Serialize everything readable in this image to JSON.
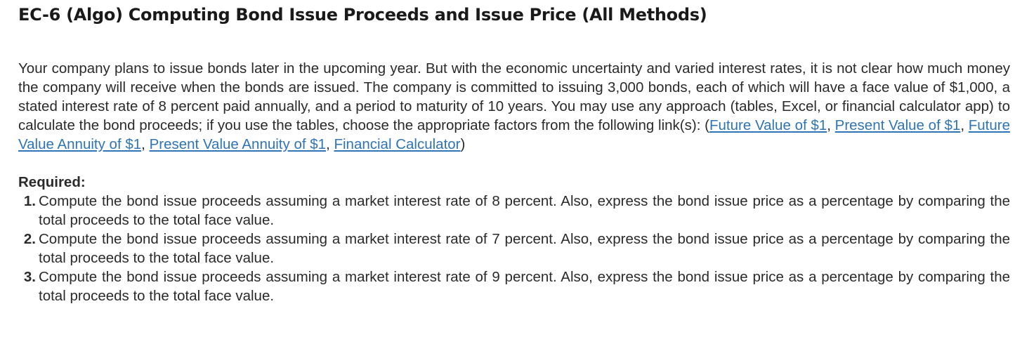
{
  "title": "EC-6 (Algo) Computing Bond Issue Proceeds and Issue Price (All Methods)",
  "intro": {
    "text": "Your company plans to issue bonds later in the upcoming year. But with the economic uncertainty and varied interest rates, it is not clear how much money the company will receive when the bonds are issued. The company is committed to issuing 3,000 bonds, each of which will have a face value of $1,000, a stated interest rate of 8 percent paid annually, and a period to maturity of 10 years. You may use any approach (tables, Excel, or financial calculator app) to calculate the bond proceeds; if you use the tables, choose the appropriate factors from the following link(s): (",
    "links": {
      "fv1": "Future Value of $1",
      "pv1": "Present Value of $1",
      "fva1": "Future Value Annuity of $1",
      "pva1": "Present Value Annuity of $1",
      "calc": "Financial Calculator"
    },
    "sep": ", ",
    "close": ")"
  },
  "required": {
    "heading": "Required:",
    "items": [
      {
        "num": "1.",
        "text": "Compute the bond issue proceeds assuming a market interest rate of 8 percent. Also, express the bond issue price as a percentage by comparing the total proceeds to the total face value."
      },
      {
        "num": "2.",
        "text": "Compute the bond issue proceeds assuming a market interest rate of 7 percent. Also, express the bond issue price as a percentage by comparing the total proceeds to the total face value."
      },
      {
        "num": "3.",
        "text": "Compute the bond issue proceeds assuming a market interest rate of 9 percent. Also, express the bond issue price as a percentage by comparing the total proceeds to the total face value."
      }
    ]
  },
  "colors": {
    "link": "#2f74b5",
    "text": "#2a2a2a"
  }
}
